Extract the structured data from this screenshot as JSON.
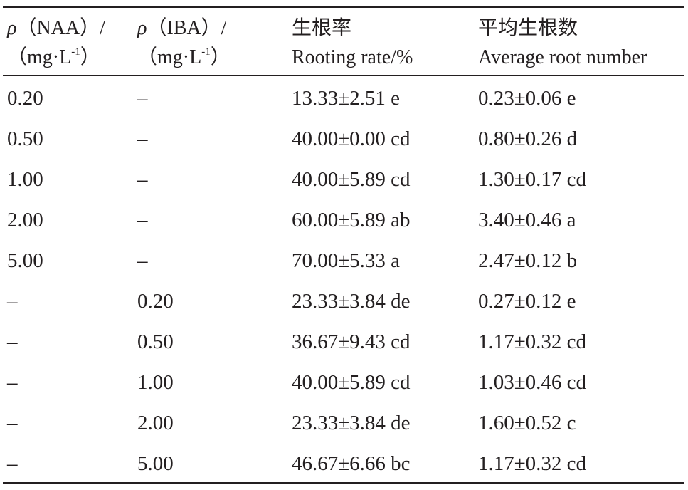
{
  "table": {
    "header": [
      {
        "line1": [
          "ρ",
          "（NAA）/"
        ],
        "line2": [
          "（mg·L",
          "-1",
          "）"
        ]
      },
      {
        "line1": [
          "ρ",
          "（IBA）/"
        ],
        "line2": [
          "（mg·L",
          "-1",
          "）"
        ]
      },
      {
        "line1": "生根率",
        "line2": "Rooting rate/%"
      },
      {
        "line1": "平均生根数",
        "line2": "Average root number"
      }
    ],
    "rows": [
      [
        "0.20",
        "–",
        "13.33±2.51 e",
        "0.23±0.06 e"
      ],
      [
        "0.50",
        "–",
        "40.00±0.00 cd",
        "0.80±0.26 d"
      ],
      [
        "1.00",
        "–",
        "40.00±5.89 cd",
        "1.30±0.17 cd"
      ],
      [
        "2.00",
        "–",
        "60.00±5.89 ab",
        "3.40±0.46 a"
      ],
      [
        "5.00",
        "–",
        "70.00±5.33 a",
        "2.47±0.12 b"
      ],
      [
        "–",
        "0.20",
        "23.33±3.84 de",
        "0.27±0.12 e"
      ],
      [
        "–",
        "0.50",
        "36.67±9.43 cd",
        "1.17±0.32 cd"
      ],
      [
        "–",
        "1.00",
        "40.00±5.89 cd",
        "1.03±0.46 cd"
      ],
      [
        "–",
        "2.00",
        "23.33±3.84 de",
        "1.60±0.52 c"
      ],
      [
        "–",
        "5.00",
        "46.67±6.66 bc",
        "1.17±0.32 cd"
      ]
    ]
  }
}
